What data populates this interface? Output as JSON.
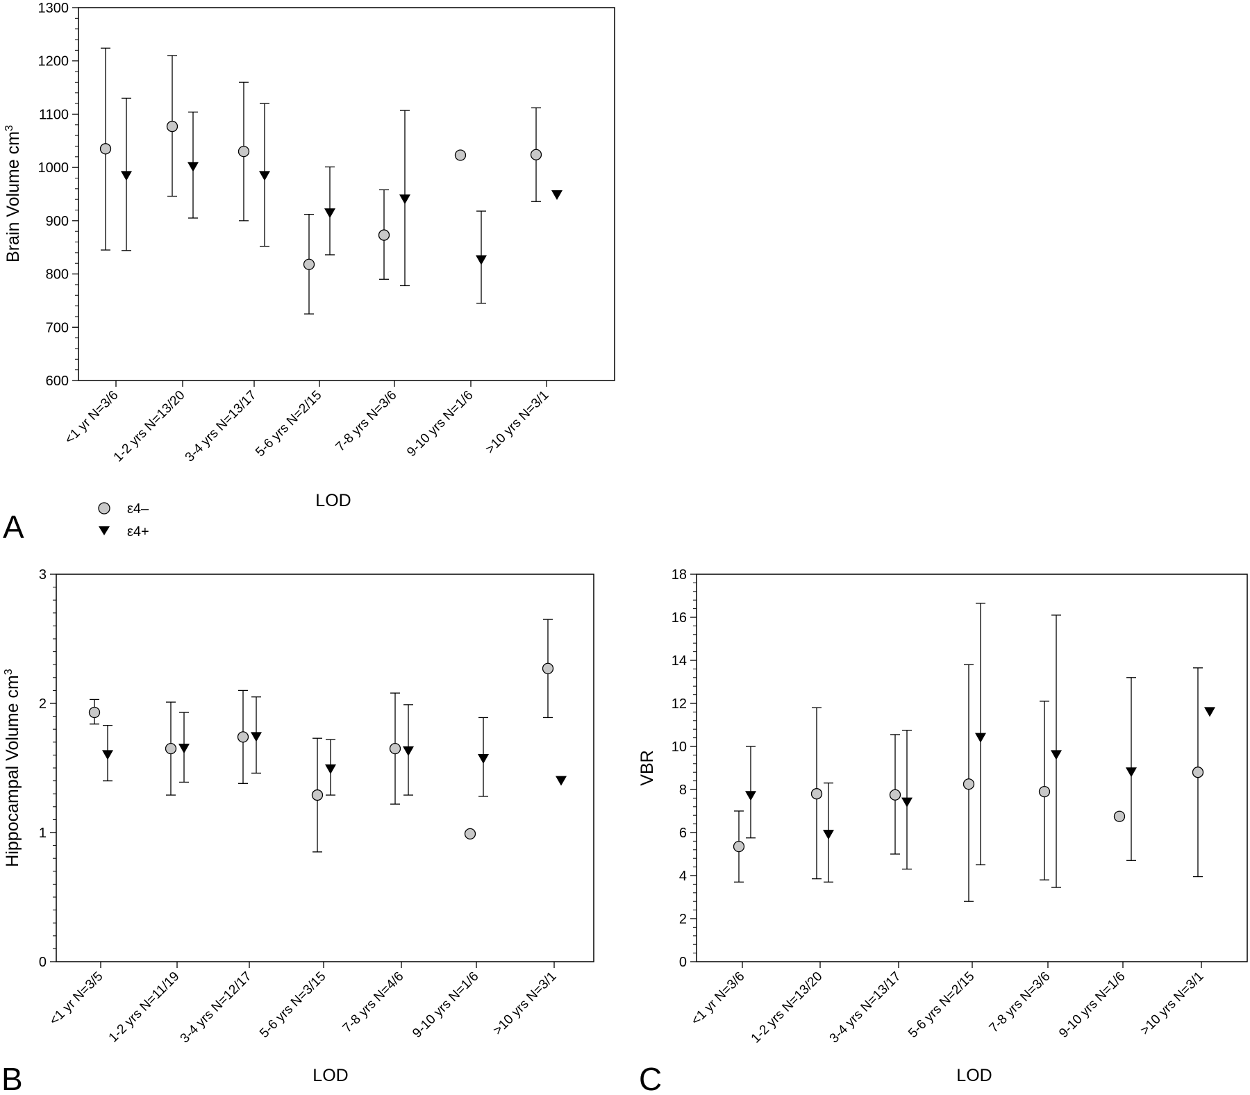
{
  "chart_data": [
    {
      "panel": "A",
      "type": "scatter",
      "xlabel": "LOD",
      "ylabel": "Brain Volume cm",
      "ylabel_sup": "3",
      "ylim": [
        600,
        1300
      ],
      "yticks": [
        600,
        700,
        800,
        900,
        1000,
        1100,
        1200,
        1300
      ],
      "grid": false,
      "categories": [
        "<1 yr N=3/6",
        "1-2 yrs N=13/20",
        "3-4 yrs N=13/17",
        "5-6 yrs N=2/15",
        "7-8 yrs N=3/6",
        "9-10 yrs N=1/6",
        ">10 yrs N=3/1"
      ],
      "series": [
        {
          "name": "ε4–",
          "marker": "circle",
          "values": [
            1035,
            1077,
            1030,
            818,
            873,
            1023,
            1024
          ],
          "err_low": [
            845,
            946,
            900,
            725,
            790,
            null,
            936
          ],
          "err_high": [
            1224,
            1210,
            1160,
            912,
            958,
            null,
            1112
          ]
        },
        {
          "name": "ε4+",
          "marker": "triangle-down",
          "values": [
            984,
            1001,
            984,
            914,
            940,
            826,
            948
          ],
          "err_low": [
            844,
            905,
            852,
            836,
            778,
            745,
            null
          ],
          "err_high": [
            1130,
            1104,
            1120,
            1001,
            1107,
            918,
            null
          ]
        }
      ]
    },
    {
      "panel": "B",
      "type": "scatter",
      "xlabel": "LOD",
      "ylabel": "Hippocampal Volume cm",
      "ylabel_sup": "3",
      "ylim": [
        0,
        3
      ],
      "yticks": [
        0,
        1,
        2,
        3
      ],
      "grid": false,
      "categories": [
        "<1 yr N=3/5",
        "1-2 yrs N=11/19",
        "3-4 yrs N=12/17",
        "5-6 yrs N=3/15",
        "7-8 yrs N=4/6",
        "9-10 yrs N=1/6",
        ">10 yrs N=3/1"
      ],
      "series": [
        {
          "name": "ε4–",
          "marker": "circle",
          "values": [
            1.93,
            1.65,
            1.74,
            1.29,
            1.65,
            0.99,
            2.27
          ],
          "err_low": [
            1.84,
            1.29,
            1.38,
            0.85,
            1.22,
            null,
            1.89
          ],
          "err_high": [
            2.03,
            2.01,
            2.1,
            1.73,
            2.08,
            null,
            2.65
          ]
        },
        {
          "name": "ε4+",
          "marker": "triangle-down",
          "values": [
            1.6,
            1.65,
            1.74,
            1.49,
            1.63,
            1.57,
            1.4
          ],
          "err_low": [
            1.4,
            1.39,
            1.46,
            1.29,
            1.29,
            1.28,
            null
          ],
          "err_high": [
            1.83,
            1.93,
            2.05,
            1.72,
            1.99,
            1.89,
            null
          ]
        }
      ]
    },
    {
      "panel": "C",
      "type": "scatter",
      "xlabel": "LOD",
      "ylabel": "VBR",
      "ylim": [
        0,
        18
      ],
      "yticks": [
        0,
        2,
        4,
        6,
        8,
        10,
        12,
        14,
        16,
        18
      ],
      "grid": false,
      "categories": [
        "<1 yr N=3/6",
        "1-2 yrs N=13/20",
        "3-4 yrs N=13/17",
        "5-6 yrs N=2/15",
        "7-8 yrs N=3/6",
        "9-10 yrs N=1/6",
        ">10 yrs N=3/1"
      ],
      "series": [
        {
          "name": "ε4–",
          "marker": "circle",
          "values": [
            5.35,
            7.8,
            7.75,
            8.25,
            7.9,
            6.75,
            8.8
          ],
          "err_low": [
            3.7,
            3.85,
            5.0,
            2.8,
            3.8,
            null,
            3.95
          ],
          "err_high": [
            7.0,
            11.8,
            10.55,
            13.8,
            12.1,
            null,
            13.65
          ]
        },
        {
          "name": "ε4+",
          "marker": "triangle-down",
          "values": [
            7.7,
            5.9,
            7.4,
            10.4,
            9.6,
            8.8,
            11.6
          ],
          "err_low": [
            5.75,
            3.7,
            4.3,
            4.5,
            3.45,
            4.7,
            null
          ],
          "err_high": [
            10.0,
            8.3,
            10.75,
            16.65,
            16.1,
            13.2,
            null
          ]
        }
      ]
    }
  ],
  "legend": {
    "items": [
      {
        "label": "ε4–",
        "marker": "circle"
      },
      {
        "label": "ε4+",
        "marker": "triangle-down"
      }
    ]
  },
  "panel_letters": [
    "A",
    "B",
    "C"
  ],
  "colors": {
    "circle_fill": "#c8c8c8",
    "triangle_fill": "#000000",
    "axis": "#000000",
    "background": "#ffffff"
  }
}
